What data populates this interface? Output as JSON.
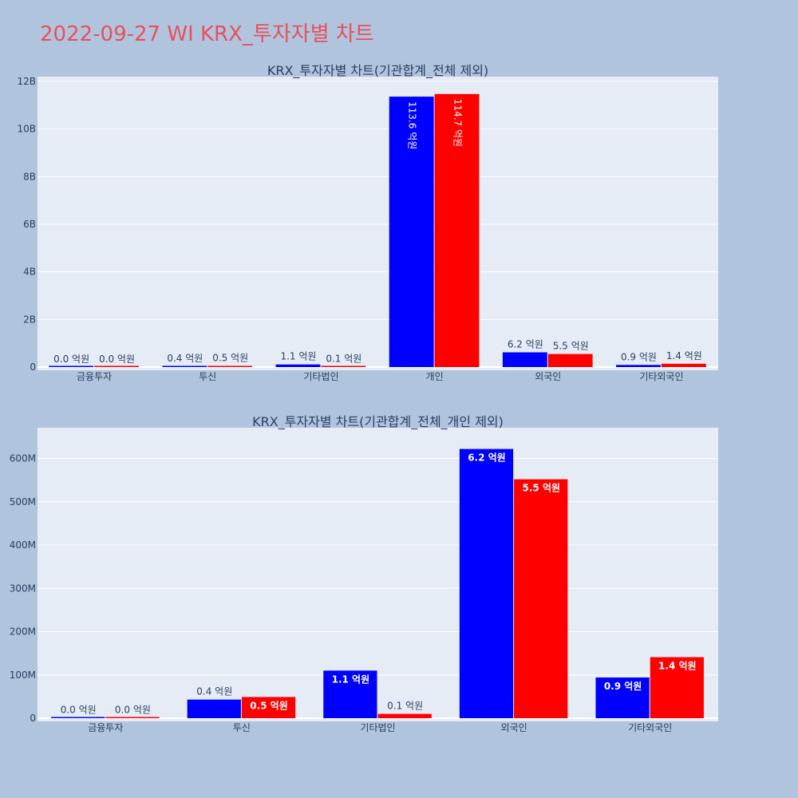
{
  "page": {
    "title": "2022-09-27 WI KRX_투자자별 차트",
    "background": "#b0c4de",
    "title_color": "#e8505b"
  },
  "colors": {
    "plot_bg": "#e5ecf6",
    "grid": "#ffffff",
    "series_1": "#0000ff",
    "series_2": "#ff0000",
    "text": "#2a3f5f"
  },
  "chart_data": [
    {
      "type": "bar",
      "title": "KRX_투자자별 차트(기관합계_전체 제외)",
      "categories": [
        "금융투자",
        "투신",
        "기타법인",
        "개인",
        "외국인",
        "기타외국인"
      ],
      "series": [
        {
          "values": [
            2000000,
            40000000,
            110000000,
            11360000000,
            620000000,
            90000000
          ],
          "labels": [
            "0.0 억원",
            "0.4 억원",
            "1.1 억원",
            "113.6 억원",
            "6.2 억원",
            "0.9 억원"
          ]
        },
        {
          "values": [
            2000000,
            50000000,
            10000000,
            11470000000,
            550000000,
            140000000
          ],
          "labels": [
            "0.0 억원",
            "0.5 억원",
            "0.1 억원",
            "114.7 억원",
            "5.5 억원",
            "1.4 억원"
          ]
        }
      ],
      "ylim": [
        0,
        12000000000
      ],
      "yticks": [
        "0",
        "2B",
        "4B",
        "6B",
        "8B",
        "10B",
        "12B"
      ],
      "ytick_values": [
        0,
        2000000000,
        4000000000,
        6000000000,
        8000000000,
        10000000000,
        12000000000
      ],
      "grid": true
    },
    {
      "type": "bar",
      "title": "KRX_투자자별 차트(기관합계_전체_개인 제외)",
      "categories": [
        "금융투자",
        "투신",
        "기타법인",
        "외국인",
        "기타외국인"
      ],
      "series": [
        {
          "values": [
            1000000,
            43000000,
            110000000,
            622000000,
            94000000
          ],
          "labels": [
            "0.0 억원",
            "0.4 억원",
            "1.1 억원",
            "6.2 억원",
            "0.9 억원"
          ]
        },
        {
          "values": [
            1000000,
            49000000,
            10000000,
            552000000,
            141000000
          ],
          "labels": [
            "0.0 억원",
            "0.5 억원",
            "0.1 억원",
            "5.5 억원",
            "1.4 억원"
          ]
        }
      ],
      "ylim": [
        0,
        660000000
      ],
      "yticks": [
        "0",
        "100M",
        "200M",
        "300M",
        "400M",
        "500M",
        "600M"
      ],
      "ytick_values": [
        0,
        100000000,
        200000000,
        300000000,
        400000000,
        500000000,
        600000000
      ],
      "grid": true
    }
  ]
}
